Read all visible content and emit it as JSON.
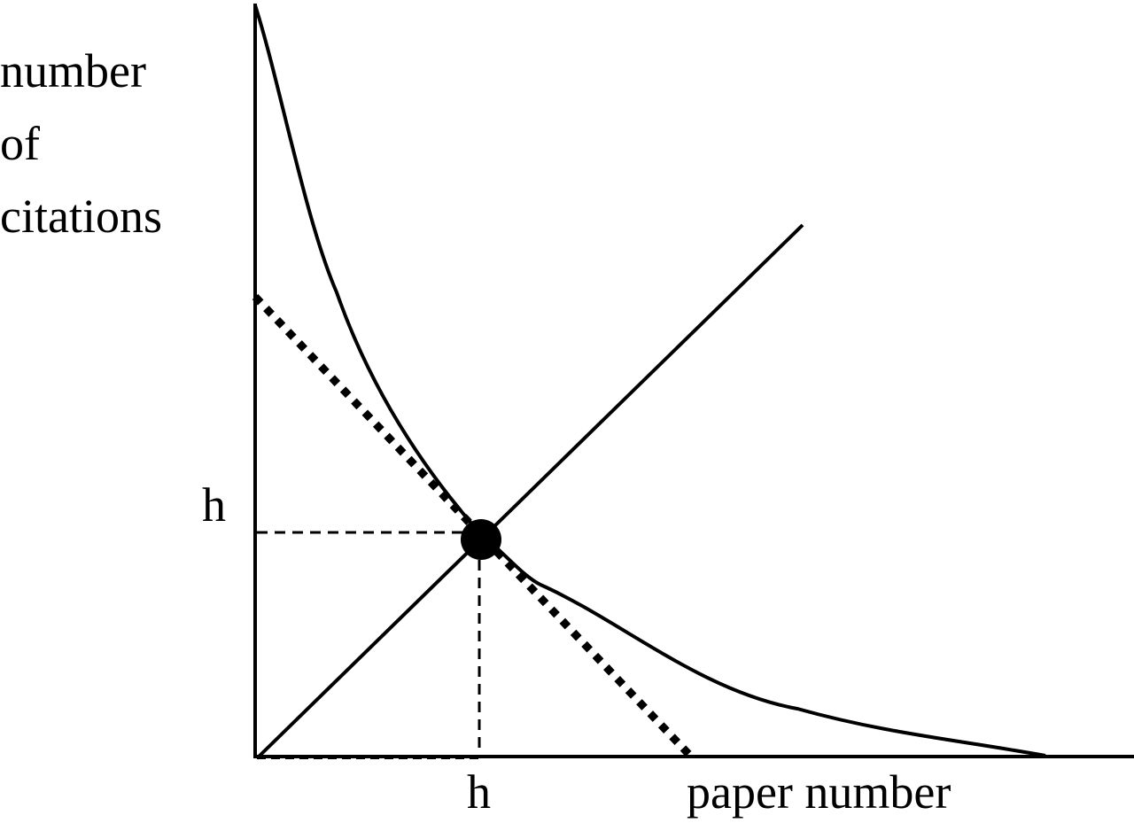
{
  "y_axis_label": [
    "number",
    "of",
    "citations"
  ],
  "x_axis_label": "paper number",
  "h_tick_y": "h",
  "h_tick_x": "h",
  "colors": {
    "ink": "#000000",
    "background": "#ffffff"
  }
}
